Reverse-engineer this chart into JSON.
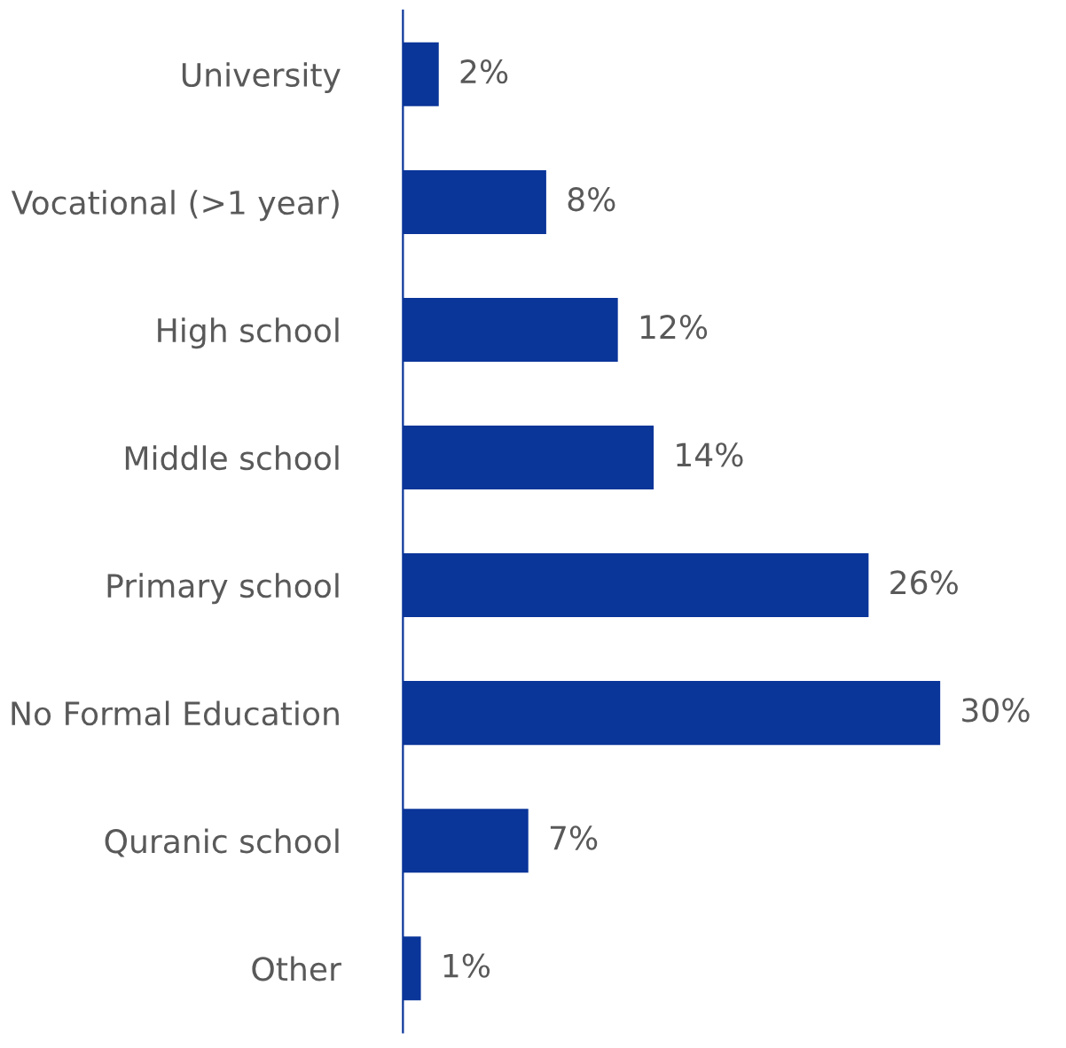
{
  "chart_data": {
    "type": "bar",
    "orientation": "horizontal",
    "categories": [
      "University",
      "Vocational (>1 year)",
      "High school",
      "Middle school",
      "Primary school",
      "No Formal Education",
      "Quranic school",
      "Other"
    ],
    "values": [
      2,
      8,
      12,
      14,
      26,
      30,
      7,
      1
    ],
    "value_labels": [
      "2%",
      "8%",
      "12%",
      "14%",
      "26%",
      "30%",
      "7%",
      "1%"
    ],
    "color": "#0a3599",
    "grid": false,
    "legend": false
  }
}
